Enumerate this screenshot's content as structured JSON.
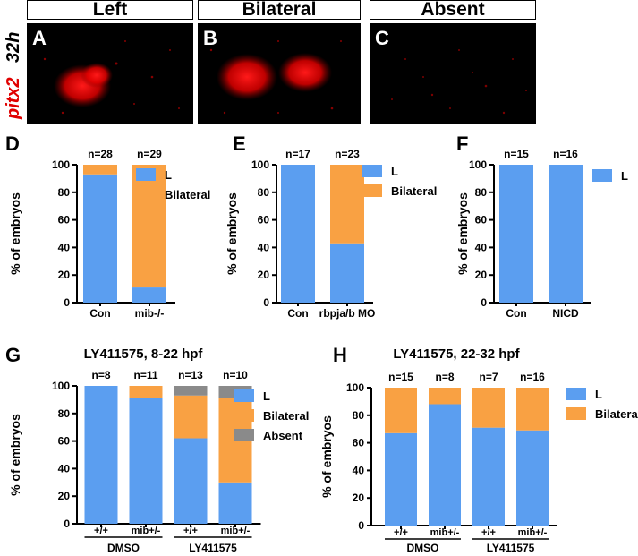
{
  "images": {
    "headers": [
      "Left",
      "Bilateral",
      "Absent"
    ],
    "stage": "32h",
    "gene": "pitx2",
    "letters": [
      "A",
      "B",
      "C"
    ]
  },
  "colors": {
    "L": "#5b9ef0",
    "Bilateral": "#f9a143",
    "Absent": "#8a8a8a",
    "micrograph_signal": "#ff1a1a"
  },
  "chart_data": [
    {
      "panel": "D",
      "type": "bar",
      "stacked": true,
      "categories": [
        "Con",
        "mib-/-"
      ],
      "n_labels": [
        "n=28",
        "n=29"
      ],
      "series": [
        {
          "name": "L",
          "values": [
            93,
            11
          ]
        },
        {
          "name": "Bilateral",
          "values": [
            7,
            89
          ]
        }
      ],
      "ylabel": "% of embryos",
      "ylim": [
        0,
        100
      ],
      "yticks": [
        0,
        20,
        40,
        60,
        80,
        100
      ],
      "title": "",
      "group_labels": [],
      "legend": "right",
      "grid": false
    },
    {
      "panel": "E",
      "type": "bar",
      "stacked": true,
      "categories": [
        "Con",
        "rbpja/b MO"
      ],
      "n_labels": [
        "n=17",
        "n=23"
      ],
      "series": [
        {
          "name": "L",
          "values": [
            100,
            43
          ]
        },
        {
          "name": "Bilateral",
          "values": [
            0,
            57
          ]
        }
      ],
      "ylabel": "% of embryos",
      "ylim": [
        0,
        100
      ],
      "yticks": [
        0,
        20,
        40,
        60,
        80,
        100
      ],
      "title": "",
      "group_labels": [],
      "legend": "right",
      "grid": false
    },
    {
      "panel": "F",
      "type": "bar",
      "stacked": true,
      "categories": [
        "Con",
        "NICD"
      ],
      "n_labels": [
        "n=15",
        "n=16"
      ],
      "series": [
        {
          "name": "L",
          "values": [
            100,
            100
          ]
        }
      ],
      "ylabel": "% of embryos",
      "ylim": [
        0,
        100
      ],
      "yticks": [
        0,
        20,
        40,
        60,
        80,
        100
      ],
      "title": "",
      "group_labels": [],
      "legend": "right",
      "grid": false
    },
    {
      "panel": "G",
      "type": "bar",
      "stacked": true,
      "title": "LY411575, 8-22 hpf",
      "categories": [
        "+/+",
        "mib+/-",
        "+/+",
        "mib+/-"
      ],
      "n_labels": [
        "n=8",
        "n=11",
        "n=13",
        "n=10"
      ],
      "group_labels": [
        "DMSO",
        "LY411575"
      ],
      "series": [
        {
          "name": "L",
          "values": [
            100,
            91,
            62,
            30
          ]
        },
        {
          "name": "Bilateral",
          "values": [
            0,
            9,
            31,
            61
          ]
        },
        {
          "name": "Absent",
          "values": [
            0,
            0,
            7,
            9
          ]
        }
      ],
      "ylabel": "% of embryos",
      "ylim": [
        0,
        100
      ],
      "yticks": [
        0,
        20,
        40,
        60,
        80,
        100
      ],
      "legend": "right",
      "grid": false
    },
    {
      "panel": "H",
      "type": "bar",
      "stacked": true,
      "title": "LY411575, 22-32 hpf",
      "categories": [
        "+/+",
        "mib+/-",
        "+/+",
        "mib+/-"
      ],
      "n_labels": [
        "n=15",
        "n=8",
        "n=7",
        "n=16"
      ],
      "group_labels": [
        "DMSO",
        "LY411575"
      ],
      "series": [
        {
          "name": "L",
          "values": [
            67,
            88,
            71,
            69
          ]
        },
        {
          "name": "Bilateral",
          "values": [
            33,
            12,
            29,
            31
          ]
        }
      ],
      "ylabel": "% of embryos",
      "ylim": [
        0,
        100
      ],
      "yticks": [
        0,
        20,
        40,
        60,
        80,
        100
      ],
      "legend": "right",
      "grid": false
    }
  ]
}
